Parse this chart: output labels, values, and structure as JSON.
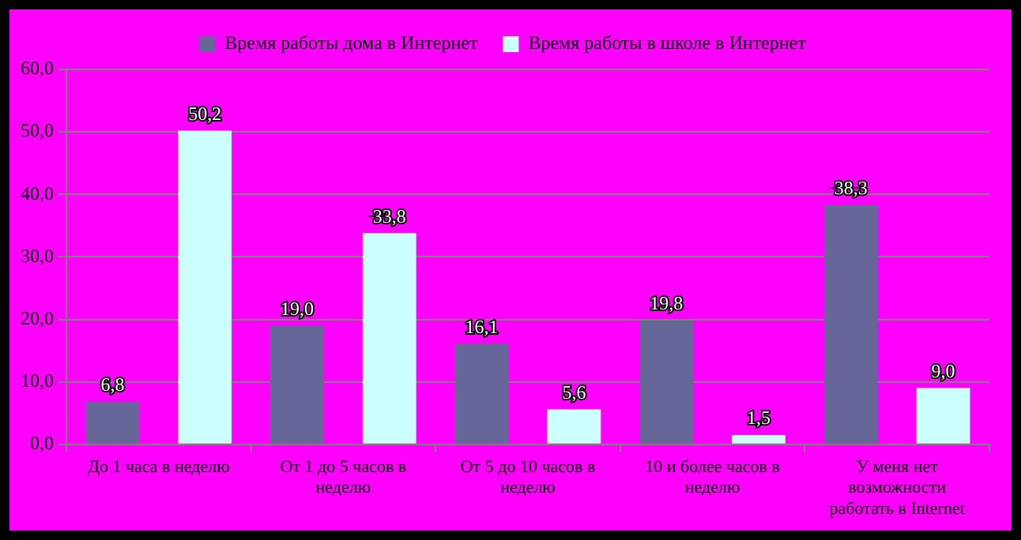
{
  "chart_data": {
    "type": "bar",
    "categories": [
      "До 1 часа в неделю",
      "От 1 до 5 часов в неделю",
      "От 5 до 10 часов в неделю",
      "10 и более часов в неделю",
      "У меня нет возможности работать в Internet"
    ],
    "series": [
      {
        "name": "Время работы дома в Интернет",
        "color": "#666699",
        "values": [
          6.8,
          19.0,
          16.1,
          19.8,
          38.3
        ],
        "value_labels": [
          "6,8",
          "19,0",
          "16,1",
          "19,8",
          "38,3"
        ]
      },
      {
        "name": "Время работы в школе в Интернет",
        "color": "#ccffff",
        "values": [
          50.2,
          33.8,
          5.6,
          1.5,
          9.0
        ],
        "value_labels": [
          "50,2",
          "33,8",
          "5,6",
          "1,5",
          "9,0"
        ]
      }
    ],
    "ylim": [
      0,
      60
    ],
    "yticks": [
      {
        "value": 0,
        "label": "0,0"
      },
      {
        "value": 10,
        "label": "10,0"
      },
      {
        "value": 20,
        "label": "20,0"
      },
      {
        "value": 30,
        "label": "30,0"
      },
      {
        "value": 40,
        "label": "40,0"
      },
      {
        "value": 50,
        "label": "50,0"
      },
      {
        "value": 60,
        "label": "60,0"
      }
    ],
    "grid": "y",
    "legend": "top"
  }
}
